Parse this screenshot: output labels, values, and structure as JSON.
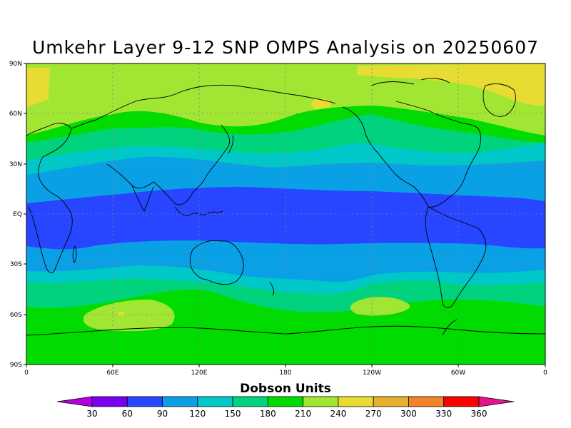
{
  "title": "Umkehr Layer 9-12 SNP OMPS Analysis on 20250607",
  "colorbar": {
    "title": "Dobson Units",
    "labels": [
      "30",
      "60",
      "90",
      "120",
      "150",
      "180",
      "210",
      "240",
      "270",
      "300",
      "330",
      "360"
    ],
    "colors": [
      "#b400dc",
      "#7800f0",
      "#2846ff",
      "#0aa0e6",
      "#00c8c8",
      "#00d27d",
      "#00dc00",
      "#a0e632",
      "#e6dc32",
      "#e6af2d",
      "#f08228",
      "#fa0000",
      "#e6148c"
    ]
  },
  "axes": {
    "lat_labels": [
      "90N",
      "60N",
      "30N",
      "EQ",
      "30S",
      "60S",
      "90S"
    ],
    "lon_labels": [
      "0",
      "60E",
      "120E",
      "180",
      "120W",
      "60W",
      "0"
    ]
  }
}
